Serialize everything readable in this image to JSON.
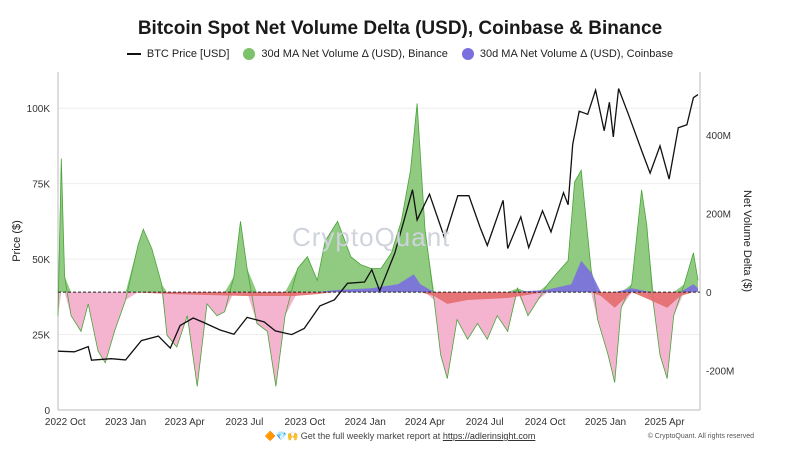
{
  "title": "Bitcoin Spot Net Volume Delta (USD), Coinbase & Binance",
  "legend": {
    "btc": "BTC Price [USD]",
    "binance": "30d MA Net Volume Δ (USD), Binance",
    "coinbase": "30d MA Net Volume Δ (USD), Coinbase"
  },
  "watermark": "CryptoQuant",
  "footer": {
    "emoji": "🔶💎🙌",
    "text": "Get the full weekly market report at",
    "link": "https://adlerinsight.com",
    "copyright": "© CryptoQuant. All rights reserved"
  },
  "colors": {
    "btc": "#111111",
    "binance_pos": "#7cc26b",
    "binance_neg": "#f2a7c7",
    "coinbase_pos": "#7b6fe0",
    "coinbase_neg": "#e46c6c",
    "grid": "#eeeeee"
  },
  "chart_data": {
    "type": "area",
    "x_labels": [
      "2022 Oct",
      "2023 Jan",
      "2023 Apr",
      "2023 Jul",
      "2023 Oct",
      "2024 Jan",
      "2024 Apr",
      "2024 Jul",
      "2024 Oct",
      "2025 Jan",
      "2025 Apr"
    ],
    "x_range": [
      "2022-09-20",
      "2025-05-25"
    ],
    "y_left": {
      "label": "Price ($)",
      "ticks": [
        0,
        25000,
        50000,
        75000,
        100000
      ],
      "tick_labels": [
        "0",
        "25K",
        "50K",
        "75K",
        "100K"
      ],
      "range": [
        0,
        112000
      ]
    },
    "y_right": {
      "label": "Net Volume Delta ($)",
      "ticks": [
        -200000000,
        0,
        200000000,
        400000000
      ],
      "tick_labels": [
        "-200M",
        "0",
        "200M",
        "400M"
      ],
      "range": [
        -300000000,
        560000000
      ]
    },
    "series": [
      {
        "name": "BTC Price [USD]",
        "axis": "left",
        "points": [
          [
            "2022-09-20",
            19500
          ],
          [
            "2022-10-15",
            19300
          ],
          [
            "2022-11-05",
            21000
          ],
          [
            "2022-11-10",
            16500
          ],
          [
            "2022-12-10",
            17000
          ],
          [
            "2023-01-01",
            16600
          ],
          [
            "2023-01-25",
            23000
          ],
          [
            "2023-02-20",
            24500
          ],
          [
            "2023-03-10",
            20500
          ],
          [
            "2023-03-25",
            28000
          ],
          [
            "2023-04-14",
            30500
          ],
          [
            "2023-04-30",
            29000
          ],
          [
            "2023-05-25",
            26500
          ],
          [
            "2023-06-15",
            25100
          ],
          [
            "2023-07-05",
            30700
          ],
          [
            "2023-07-31",
            29200
          ],
          [
            "2023-08-17",
            26200
          ],
          [
            "2023-09-11",
            25000
          ],
          [
            "2023-09-30",
            27000
          ],
          [
            "2023-10-24",
            34500
          ],
          [
            "2023-11-15",
            36500
          ],
          [
            "2023-12-05",
            42000
          ],
          [
            "2023-12-31",
            42400
          ],
          [
            "2024-01-11",
            46500
          ],
          [
            "2024-01-23",
            39500
          ],
          [
            "2024-02-15",
            52000
          ],
          [
            "2024-02-28",
            62000
          ],
          [
            "2024-03-13",
            73000
          ],
          [
            "2024-03-20",
            63000
          ],
          [
            "2024-04-08",
            71500
          ],
          [
            "2024-05-01",
            57000
          ],
          [
            "2024-05-21",
            71000
          ],
          [
            "2024-06-07",
            71000
          ],
          [
            "2024-06-24",
            60500
          ],
          [
            "2024-07-05",
            54500
          ],
          [
            "2024-07-29",
            69500
          ],
          [
            "2024-08-05",
            53500
          ],
          [
            "2024-08-25",
            64000
          ],
          [
            "2024-09-06",
            53800
          ],
          [
            "2024-09-27",
            66000
          ],
          [
            "2024-10-10",
            59000
          ],
          [
            "2024-10-29",
            72000
          ],
          [
            "2024-11-05",
            68000
          ],
          [
            "2024-11-12",
            88000
          ],
          [
            "2024-11-22",
            99000
          ],
          [
            "2024-12-05",
            98000
          ],
          [
            "2024-12-17",
            106000
          ],
          [
            "2024-12-30",
            92500
          ],
          [
            "2025-01-07",
            102000
          ],
          [
            "2025-01-13",
            90500
          ],
          [
            "2025-01-21",
            106500
          ],
          [
            "2025-02-05",
            98000
          ],
          [
            "2025-02-25",
            86000
          ],
          [
            "2025-03-10",
            78500
          ],
          [
            "2025-03-25",
            87500
          ],
          [
            "2025-04-08",
            76500
          ],
          [
            "2025-04-22",
            93500
          ],
          [
            "2025-05-05",
            94500
          ],
          [
            "2025-05-15",
            103500
          ],
          [
            "2025-05-22",
            104500
          ]
        ]
      },
      {
        "name": "30d MA Net Volume Δ (USD), Binance",
        "axis": "right",
        "points": [
          [
            "2022-09-20",
            -60000000
          ],
          [
            "2022-09-25",
            340000000
          ],
          [
            "2022-09-30",
            40000000
          ],
          [
            "2022-10-10",
            -60000000
          ],
          [
            "2022-10-25",
            -100000000
          ],
          [
            "2022-11-05",
            -30000000
          ],
          [
            "2022-11-20",
            -150000000
          ],
          [
            "2022-12-01",
            -180000000
          ],
          [
            "2022-12-15",
            -100000000
          ],
          [
            "2023-01-01",
            -20000000
          ],
          [
            "2023-01-20",
            120000000
          ],
          [
            "2023-01-28",
            160000000
          ],
          [
            "2023-02-10",
            110000000
          ],
          [
            "2023-02-25",
            20000000
          ],
          [
            "2023-03-05",
            -110000000
          ],
          [
            "2023-03-20",
            -140000000
          ],
          [
            "2023-04-05",
            -60000000
          ],
          [
            "2023-04-20",
            -240000000
          ],
          [
            "2023-05-05",
            -30000000
          ],
          [
            "2023-05-20",
            -60000000
          ],
          [
            "2023-06-01",
            -50000000
          ],
          [
            "2023-06-15",
            40000000
          ],
          [
            "2023-06-25",
            180000000
          ],
          [
            "2023-07-05",
            60000000
          ],
          [
            "2023-07-20",
            -80000000
          ],
          [
            "2023-08-05",
            -100000000
          ],
          [
            "2023-08-18",
            -240000000
          ],
          [
            "2023-09-01",
            -60000000
          ],
          [
            "2023-09-20",
            60000000
          ],
          [
            "2023-10-05",
            90000000
          ],
          [
            "2023-10-20",
            30000000
          ],
          [
            "2023-11-01",
            130000000
          ],
          [
            "2023-11-20",
            180000000
          ],
          [
            "2023-12-10",
            90000000
          ],
          [
            "2023-12-25",
            70000000
          ],
          [
            "2024-01-10",
            60000000
          ],
          [
            "2024-01-25",
            60000000
          ],
          [
            "2024-02-10",
            100000000
          ],
          [
            "2024-02-25",
            180000000
          ],
          [
            "2024-03-10",
            310000000
          ],
          [
            "2024-03-20",
            480000000
          ],
          [
            "2024-04-01",
            160000000
          ],
          [
            "2024-04-15",
            -20000000
          ],
          [
            "2024-04-25",
            -160000000
          ],
          [
            "2024-05-05",
            -220000000
          ],
          [
            "2024-05-20",
            -70000000
          ],
          [
            "2024-06-05",
            -120000000
          ],
          [
            "2024-06-20",
            -80000000
          ],
          [
            "2024-07-05",
            -120000000
          ],
          [
            "2024-07-20",
            -60000000
          ],
          [
            "2024-08-05",
            -100000000
          ],
          [
            "2024-08-20",
            10000000
          ],
          [
            "2024-09-05",
            -60000000
          ],
          [
            "2024-09-20",
            -20000000
          ],
          [
            "2024-10-05",
            20000000
          ],
          [
            "2024-10-20",
            50000000
          ],
          [
            "2024-11-05",
            80000000
          ],
          [
            "2024-11-15",
            280000000
          ],
          [
            "2024-11-25",
            310000000
          ],
          [
            "2024-12-10",
            60000000
          ],
          [
            "2024-12-20",
            -70000000
          ],
          [
            "2025-01-05",
            -160000000
          ],
          [
            "2025-01-15",
            -230000000
          ],
          [
            "2025-01-25",
            -40000000
          ],
          [
            "2025-02-10",
            20000000
          ],
          [
            "2025-02-25",
            260000000
          ],
          [
            "2025-03-05",
            170000000
          ],
          [
            "2025-03-15",
            -30000000
          ],
          [
            "2025-03-25",
            -160000000
          ],
          [
            "2025-04-05",
            -220000000
          ],
          [
            "2025-04-15",
            -60000000
          ],
          [
            "2025-05-01",
            20000000
          ],
          [
            "2025-05-15",
            100000000
          ],
          [
            "2025-05-22",
            30000000
          ]
        ]
      },
      {
        "name": "30d MA Net Volume Δ (USD), Coinbase",
        "axis": "right",
        "points": [
          [
            "2022-09-20",
            0
          ],
          [
            "2023-01-01",
            0
          ],
          [
            "2023-03-15",
            -5000000
          ],
          [
            "2023-07-01",
            -10000000
          ],
          [
            "2023-09-15",
            -10000000
          ],
          [
            "2023-10-20",
            -5000000
          ],
          [
            "2023-11-15",
            5000000
          ],
          [
            "2024-01-10",
            10000000
          ],
          [
            "2024-02-20",
            20000000
          ],
          [
            "2024-03-15",
            45000000
          ],
          [
            "2024-03-25",
            20000000
          ],
          [
            "2024-04-15",
            -10000000
          ],
          [
            "2024-05-05",
            -30000000
          ],
          [
            "2024-06-05",
            -20000000
          ],
          [
            "2024-08-05",
            -15000000
          ],
          [
            "2024-10-01",
            5000000
          ],
          [
            "2024-11-10",
            20000000
          ],
          [
            "2024-11-25",
            80000000
          ],
          [
            "2024-12-10",
            50000000
          ],
          [
            "2024-12-25",
            -10000000
          ],
          [
            "2025-01-15",
            -40000000
          ],
          [
            "2025-02-10",
            10000000
          ],
          [
            "2025-03-10",
            -20000000
          ],
          [
            "2025-04-05",
            -40000000
          ],
          [
            "2025-04-25",
            -10000000
          ],
          [
            "2025-05-15",
            20000000
          ],
          [
            "2025-05-22",
            10000000
          ]
        ]
      }
    ]
  }
}
